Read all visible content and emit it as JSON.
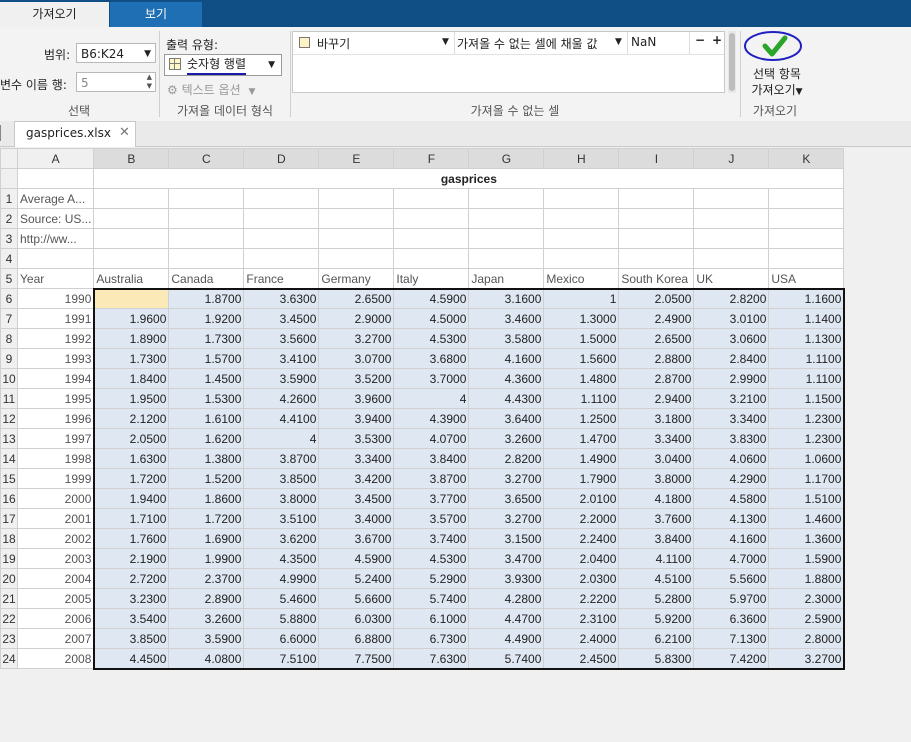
{
  "tabs": {
    "import": "가져오기",
    "view": "보기"
  },
  "selection": {
    "range_label": "범위:",
    "range_value": "B6:K24",
    "varnames_label": "변수 이름 행:",
    "varnames_value": "5",
    "title": "선택"
  },
  "output": {
    "type_label": "출력 유형:",
    "type_value": "숫자형 행렬",
    "text_options": "텍스트 옵션",
    "title": "가져올 데이터 형식"
  },
  "unimportable": {
    "rule_action": "바꾸기",
    "rule_target": "가져올 수 없는 셀에 채울 값",
    "rule_value": "NaN",
    "minus": "−",
    "plus": "+",
    "title": "가져올 수 없는 셀"
  },
  "import_btn": {
    "line1": "선택 항목",
    "line2": "가져오기",
    "title": "가져오기"
  },
  "doc_tab": {
    "name": "gasprices.xlsx"
  },
  "sheet": {
    "columns": [
      "A",
      "B",
      "C",
      "D",
      "E",
      "F",
      "G",
      "H",
      "I",
      "J",
      "K"
    ],
    "title": "gasprices",
    "meta_rows": [
      "Average A...",
      "Source: US...",
      "http://ww...",
      ""
    ],
    "headers": [
      "Year",
      "Australia",
      "Canada",
      "France",
      "Germany",
      "Italy",
      "Japan",
      "Mexico",
      "South Korea",
      "UK",
      "USA"
    ],
    "rows": [
      [
        "1990",
        "",
        "1.8700",
        "3.6300",
        "2.6500",
        "4.5900",
        "3.1600",
        "1",
        "2.0500",
        "2.8200",
        "1.1600"
      ],
      [
        "1991",
        "1.9600",
        "1.9200",
        "3.4500",
        "2.9000",
        "4.5000",
        "3.4600",
        "1.3000",
        "2.4900",
        "3.0100",
        "1.1400"
      ],
      [
        "1992",
        "1.8900",
        "1.7300",
        "3.5600",
        "3.2700",
        "4.5300",
        "3.5800",
        "1.5000",
        "2.6500",
        "3.0600",
        "1.1300"
      ],
      [
        "1993",
        "1.7300",
        "1.5700",
        "3.4100",
        "3.0700",
        "3.6800",
        "4.1600",
        "1.5600",
        "2.8800",
        "2.8400",
        "1.1100"
      ],
      [
        "1994",
        "1.8400",
        "1.4500",
        "3.5900",
        "3.5200",
        "3.7000",
        "4.3600",
        "1.4800",
        "2.8700",
        "2.9900",
        "1.1100"
      ],
      [
        "1995",
        "1.9500",
        "1.5300",
        "4.2600",
        "3.9600",
        "4",
        "4.4300",
        "1.1100",
        "2.9400",
        "3.2100",
        "1.1500"
      ],
      [
        "1996",
        "2.1200",
        "1.6100",
        "4.4100",
        "3.9400",
        "4.3900",
        "3.6400",
        "1.2500",
        "3.1800",
        "3.3400",
        "1.2300"
      ],
      [
        "1997",
        "2.0500",
        "1.6200",
        "4",
        "3.5300",
        "4.0700",
        "3.2600",
        "1.4700",
        "3.3400",
        "3.8300",
        "1.2300"
      ],
      [
        "1998",
        "1.6300",
        "1.3800",
        "3.8700",
        "3.3400",
        "3.8400",
        "2.8200",
        "1.4900",
        "3.0400",
        "4.0600",
        "1.0600"
      ],
      [
        "1999",
        "1.7200",
        "1.5200",
        "3.8500",
        "3.4200",
        "3.8700",
        "3.2700",
        "1.7900",
        "3.8000",
        "4.2900",
        "1.1700"
      ],
      [
        "2000",
        "1.9400",
        "1.8600",
        "3.8000",
        "3.4500",
        "3.7700",
        "3.6500",
        "2.0100",
        "4.1800",
        "4.5800",
        "1.5100"
      ],
      [
        "2001",
        "1.7100",
        "1.7200",
        "3.5100",
        "3.4000",
        "3.5700",
        "3.2700",
        "2.2000",
        "3.7600",
        "4.1300",
        "1.4600"
      ],
      [
        "2002",
        "1.7600",
        "1.6900",
        "3.6200",
        "3.6700",
        "3.7400",
        "3.1500",
        "2.2400",
        "3.8400",
        "4.1600",
        "1.3600"
      ],
      [
        "2003",
        "2.1900",
        "1.9900",
        "4.3500",
        "4.5900",
        "4.5300",
        "3.4700",
        "2.0400",
        "4.1100",
        "4.7000",
        "1.5900"
      ],
      [
        "2004",
        "2.7200",
        "2.3700",
        "4.9900",
        "5.2400",
        "5.2900",
        "3.9300",
        "2.0300",
        "4.5100",
        "5.5600",
        "1.8800"
      ],
      [
        "2005",
        "3.2300",
        "2.8900",
        "5.4600",
        "5.6600",
        "5.7400",
        "4.2800",
        "2.2200",
        "5.2800",
        "5.9700",
        "2.3000"
      ],
      [
        "2006",
        "3.5400",
        "3.2600",
        "5.8800",
        "6.0300",
        "6.1000",
        "4.4700",
        "2.3100",
        "5.9200",
        "6.3600",
        "2.5900"
      ],
      [
        "2007",
        "3.8500",
        "3.5900",
        "6.6000",
        "6.8800",
        "6.7300",
        "4.4900",
        "2.4000",
        "6.2100",
        "7.1300",
        "2.8000"
      ],
      [
        "2008",
        "4.4500",
        "4.0800",
        "7.5100",
        "7.7500",
        "7.6300",
        "5.7400",
        "2.4500",
        "5.8300",
        "7.4200",
        "3.2700"
      ]
    ]
  }
}
